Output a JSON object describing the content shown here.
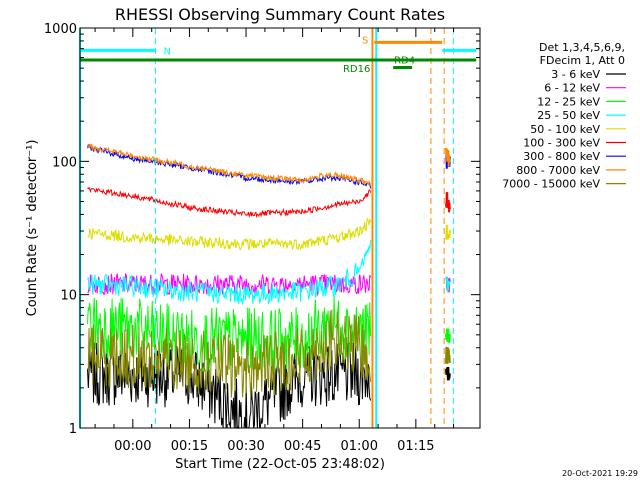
{
  "chart_data": {
    "type": "line",
    "title": "RHESSI Observing Summary Count Rates",
    "ylabel": "Count Rate (s⁻¹ detector⁻¹)",
    "xlabel": "Start Time (22-Oct-05 23:48:02)",
    "y_scale": "log",
    "ylim": [
      1,
      1000
    ],
    "xlim_minutes": [
      -14,
      92
    ],
    "y_ticks": [
      {
        "value": 1,
        "label": "1"
      },
      {
        "value": 10,
        "label": "10"
      },
      {
        "value": 100,
        "label": "100"
      },
      {
        "value": 1000,
        "label": "1000"
      }
    ],
    "x_ticks": [
      {
        "value": 0,
        "label": "00:00"
      },
      {
        "value": 15,
        "label": "00:15"
      },
      {
        "value": 30,
        "label": "00:30"
      },
      {
        "value": 45,
        "label": "00:45"
      },
      {
        "value": 60,
        "label": "01:00"
      },
      {
        "value": 75,
        "label": "01:15"
      }
    ],
    "legend_header": [
      "Det 1,3,4,5,6,9,",
      "FDecim 1, Att 0"
    ],
    "legend_position": "right",
    "timestamp": "20-Oct-2021 19:29",
    "grid": false,
    "series": [
      {
        "name": "3 - 6 keV",
        "color": "#000000",
        "x": [
          -12,
          0,
          15,
          30,
          45,
          60,
          63
        ],
        "y": [
          2.5,
          2.5,
          2.5,
          1.2,
          2.5,
          2.5,
          2.5
        ],
        "resume": {
          "x": [
            83,
            84
          ],
          "y": [
            2.5,
            2.5
          ]
        }
      },
      {
        "name": "6 - 12 keV",
        "color": "#ff00ff",
        "x": [
          -12,
          0,
          15,
          30,
          45,
          60,
          63
        ],
        "y": [
          12,
          12,
          12,
          12,
          12,
          12,
          12
        ],
        "resume": {
          "x": [
            83,
            84
          ],
          "y": [
            12,
            12
          ]
        }
      },
      {
        "name": "12 - 25 keV",
        "color": "#00ff00",
        "x": [
          -12,
          0,
          15,
          30,
          45,
          52,
          60,
          63
        ],
        "y": [
          6,
          5.5,
          4.6,
          4.6,
          4.6,
          6,
          5.5,
          5
        ],
        "resume": {
          "x": [
            83,
            84
          ],
          "y": [
            5,
            5
          ]
        }
      },
      {
        "name": "25 - 50 keV",
        "color": "#00ffff",
        "x": [
          -12,
          0,
          15,
          30,
          45,
          55,
          60,
          63
        ],
        "y": [
          12,
          11.5,
          10.5,
          10,
          10.5,
          12,
          15,
          24
        ],
        "resume": {
          "x": [
            83,
            84
          ],
          "y": [
            12,
            12
          ]
        }
      },
      {
        "name": "50 - 100 keV",
        "color": "#dddd00",
        "x": [
          -12,
          0,
          15,
          30,
          45,
          55,
          60,
          63
        ],
        "y": [
          29,
          27,
          25,
          24,
          24,
          27,
          30,
          35
        ],
        "resume": {
          "x": [
            83,
            84
          ],
          "y": [
            30,
            30
          ]
        }
      },
      {
        "name": "100 - 300 keV",
        "color": "#ff0000",
        "x": [
          -12,
          0,
          15,
          30,
          45,
          55,
          60,
          63
        ],
        "y": [
          62,
          55,
          45,
          40,
          42,
          48,
          50,
          60
        ],
        "resume": {
          "x": [
            83,
            84
          ],
          "y": [
            52,
            45
          ]
        }
      },
      {
        "name": "300 - 800 keV",
        "color": "#0000ff",
        "x": [
          -12,
          0,
          15,
          30,
          45,
          52,
          60,
          63
        ],
        "y": [
          128,
          105,
          90,
          75,
          70,
          76,
          70,
          65
        ],
        "resume": {
          "x": [
            83,
            84
          ],
          "y": [
            100,
            95
          ]
        }
      },
      {
        "name": "800 - 7000 keV",
        "color": "#ff8800",
        "x": [
          -12,
          0,
          15,
          30,
          45,
          52,
          60,
          63
        ],
        "y": [
          130,
          110,
          92,
          78,
          72,
          80,
          72,
          68
        ],
        "resume": {
          "x": [
            83,
            84
          ],
          "y": [
            110,
            105
          ]
        }
      },
      {
        "name": "7000 - 15000 keV",
        "color": "#888800",
        "x": [
          -12,
          0,
          15,
          30,
          45,
          52,
          60,
          63
        ],
        "y": [
          3.6,
          3.4,
          3.2,
          2.8,
          3.4,
          4.5,
          4.0,
          3.5
        ],
        "resume": {
          "x": [
            83,
            84
          ],
          "y": [
            3.5,
            3.5
          ]
        }
      }
    ],
    "annotations": [
      {
        "label": "N",
        "color": "#00ffff",
        "x_start": -14,
        "x_end": 6,
        "y": 680,
        "type": "flag"
      },
      {
        "label": "S",
        "color": "#ff8800",
        "x_start": 64,
        "x_end": 82,
        "y": 780,
        "type": "flag"
      },
      {
        "label": "",
        "color": "#00ffff",
        "x_start": 82,
        "x_end": 91,
        "y": 680,
        "type": "flag"
      },
      {
        "label": "RD16",
        "color": "#008800",
        "x_start": -14,
        "x_end": 91,
        "y": 575,
        "type": "flag"
      },
      {
        "label": "RD4",
        "color": "#008800",
        "x_start": 69,
        "x_end": 74,
        "y": 505,
        "type": "flag"
      }
    ],
    "vertical_lines": [
      {
        "x": 6,
        "color": "#00ffff",
        "style": "dashed"
      },
      {
        "x": 63.5,
        "color": "#ff8800",
        "style": "solid"
      },
      {
        "x": 64.5,
        "color": "#00ffff",
        "style": "solid"
      },
      {
        "x": 79,
        "color": "#ff8800",
        "style": "dashed"
      },
      {
        "x": 82.5,
        "color": "#ff8800",
        "style": "dashed"
      },
      {
        "x": 85,
        "color": "#00ffff",
        "style": "dashed"
      }
    ],
    "left_boundary": {
      "x": -14,
      "color": "#00ffff"
    }
  }
}
